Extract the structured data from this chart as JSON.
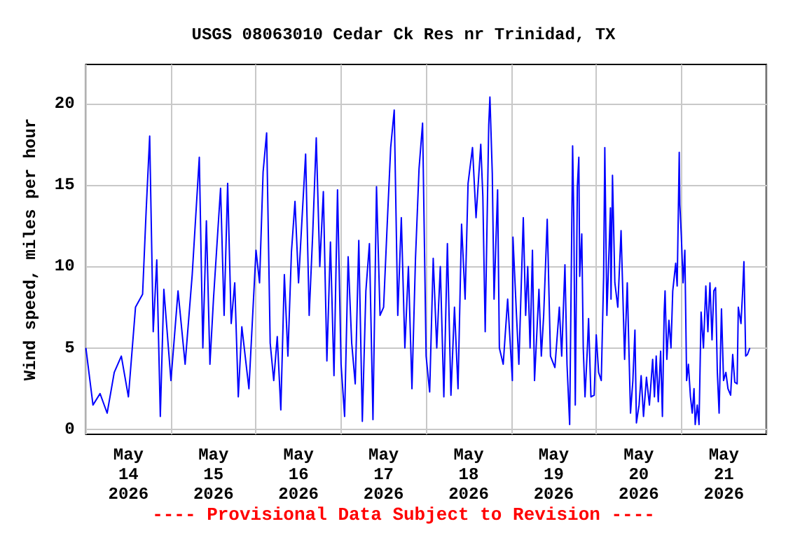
{
  "chart_data": {
    "type": "line",
    "title": "USGS 08063010 Cedar Ck Res nr Trinidad, TX",
    "ylabel": "Wind speed, miles per hour",
    "annotations": [
      "---- Provisional Data Subject to Revision ----"
    ],
    "xlim": [
      "2026-05-14",
      "2026-05-22"
    ],
    "xticks": [
      {
        "value": "2026-05-14",
        "label": null
      },
      {
        "value": "2026-05-14T12:00",
        "label": "May\n14\n2026"
      },
      {
        "value": "2026-05-15",
        "label": null
      },
      {
        "value": "2026-05-15T12:00",
        "label": "May\n15\n2026"
      },
      {
        "value": "2026-05-16",
        "label": null
      },
      {
        "value": "2026-05-16T12:00",
        "label": "May\n16\n2026"
      },
      {
        "value": "2026-05-17",
        "label": null
      },
      {
        "value": "2026-05-17T12:00",
        "label": "May\n17\n2026"
      },
      {
        "value": "2026-05-18",
        "label": null
      },
      {
        "value": "2026-05-18T12:00",
        "label": "May\n18\n2026"
      },
      {
        "value": "2026-05-19",
        "label": null
      },
      {
        "value": "2026-05-19T12:00",
        "label": "May\n19\n2026"
      },
      {
        "value": "2026-05-20",
        "label": null
      },
      {
        "value": "2026-05-20T12:00",
        "label": "May\n20\n2026"
      },
      {
        "value": "2026-05-21",
        "label": null
      },
      {
        "value": "2026-05-21T12:00",
        "label": "May\n21\n2026"
      },
      {
        "value": "2026-05-22",
        "label": null
      }
    ],
    "ylim": [
      -0.3,
      22.4
    ],
    "yticks": [
      0,
      5,
      10,
      15,
      20
    ],
    "grid": true,
    "marker": "none",
    "line_style": "solid",
    "series": [
      {
        "color": "#0000ff",
        "x": [
          "2026-05-14T00:00",
          "2026-05-14T02:00",
          "2026-05-14T04:00",
          "2026-05-14T06:00",
          "2026-05-14T08:00",
          "2026-05-14T10:00",
          "2026-05-14T12:00",
          "2026-05-14T14:00",
          "2026-05-14T16:00",
          "2026-05-14T17:00",
          "2026-05-14T18:00",
          "2026-05-14T19:00",
          "2026-05-14T20:00",
          "2026-05-14T21:00",
          "2026-05-14T22:00",
          "2026-05-15T00:00",
          "2026-05-15T02:00",
          "2026-05-15T04:00",
          "2026-05-15T06:00",
          "2026-05-15T08:00",
          "2026-05-15T09:00",
          "2026-05-15T10:00",
          "2026-05-15T11:00",
          "2026-05-15T12:00",
          "2026-05-15T14:00",
          "2026-05-15T15:00",
          "2026-05-15T16:00",
          "2026-05-15T17:00",
          "2026-05-15T18:00",
          "2026-05-15T19:00",
          "2026-05-15T20:00",
          "2026-05-15T22:00",
          "2026-05-16T00:00",
          "2026-05-16T01:00",
          "2026-05-16T02:00",
          "2026-05-16T03:00",
          "2026-05-16T04:00",
          "2026-05-16T05:00",
          "2026-05-16T06:00",
          "2026-05-16T07:00",
          "2026-05-16T08:00",
          "2026-05-16T09:00",
          "2026-05-16T10:00",
          "2026-05-16T11:00",
          "2026-05-16T12:00",
          "2026-05-16T13:00",
          "2026-05-16T14:00",
          "2026-05-16T15:00",
          "2026-05-16T16:00",
          "2026-05-16T17:00",
          "2026-05-16T18:00",
          "2026-05-16T19:00",
          "2026-05-16T20:00",
          "2026-05-16T21:00",
          "2026-05-16T22:00",
          "2026-05-16T23:00",
          "2026-05-17T00:00",
          "2026-05-17T01:00",
          "2026-05-17T02:00",
          "2026-05-17T03:00",
          "2026-05-17T04:00",
          "2026-05-17T05:00",
          "2026-05-17T06:00",
          "2026-05-17T07:00",
          "2026-05-17T08:00",
          "2026-05-17T09:00",
          "2026-05-17T10:00",
          "2026-05-17T11:00",
          "2026-05-17T12:00",
          "2026-05-17T13:00",
          "2026-05-17T14:00",
          "2026-05-17T15:00",
          "2026-05-17T16:00",
          "2026-05-17T17:00",
          "2026-05-17T18:00",
          "2026-05-17T19:00",
          "2026-05-17T20:00",
          "2026-05-17T21:00",
          "2026-05-17T22:00",
          "2026-05-17T23:00",
          "2026-05-18T00:00",
          "2026-05-18T01:00",
          "2026-05-18T02:00",
          "2026-05-18T03:00",
          "2026-05-18T04:00",
          "2026-05-18T05:00",
          "2026-05-18T06:00",
          "2026-05-18T07:00",
          "2026-05-18T08:00",
          "2026-05-18T09:00",
          "2026-05-18T10:00",
          "2026-05-18T11:00",
          "2026-05-18T11:50",
          "2026-05-18T13:05",
          "2026-05-18T14:05",
          "2026-05-18T15:25",
          "2026-05-18T16:00",
          "2026-05-18T16:40",
          "2026-05-18T17:40",
          "2026-05-18T18:00",
          "2026-05-18T18:40",
          "2026-05-18T19:10",
          "2026-05-18T20:10",
          "2026-05-18T20:40",
          "2026-05-18T21:45",
          "2026-05-18T23:00",
          "2026-05-19T00:20",
          "2026-05-19T00:30",
          "2026-05-19T01:30",
          "2026-05-19T02:10",
          "2026-05-19T03:25",
          "2026-05-19T04:05",
          "2026-05-19T04:40",
          "2026-05-19T05:20",
          "2026-05-19T06:00",
          "2026-05-19T06:35",
          "2026-05-19T07:50",
          "2026-05-19T08:30",
          "2026-05-19T09:10",
          "2026-05-19T10:10",
          "2026-05-19T11:05",
          "2026-05-19T12:20",
          "2026-05-19T13:35",
          "2026-05-19T14:15",
          "2026-05-19T15:10",
          "2026-05-19T15:45",
          "2026-05-19T16:30",
          "2026-05-19T17:20",
          "2026-05-19T17:40",
          "2026-05-19T18:05",
          "2026-05-19T18:40",
          "2026-05-19T19:05",
          "2026-05-19T19:20",
          "2026-05-19T19:55",
          "2026-05-19T20:20",
          "2026-05-19T20:50",
          "2026-05-19T21:30",
          "2026-05-19T21:50",
          "2026-05-19T22:30",
          "2026-05-19T23:25",
          "2026-05-20T00:00",
          "2026-05-20T00:40",
          "2026-05-20T01:25",
          "2026-05-20T02:05",
          "2026-05-20T02:25",
          "2026-05-20T03:00",
          "2026-05-20T04:00",
          "2026-05-20T04:10",
          "2026-05-20T04:35",
          "2026-05-20T05:15",
          "2026-05-20T06:05",
          "2026-05-20T07:00",
          "2026-05-20T07:25",
          "2026-05-20T08:00",
          "2026-05-20T08:45",
          "2026-05-20T09:40",
          "2026-05-20T10:20",
          "2026-05-20T10:55",
          "2026-05-20T11:20",
          "2026-05-20T12:05",
          "2026-05-20T12:40",
          "2026-05-20T13:20",
          "2026-05-20T14:10",
          "2026-05-20T15:00",
          "2026-05-20T15:55",
          "2026-05-20T16:25",
          "2026-05-20T16:55",
          "2026-05-20T17:30",
          "2026-05-20T18:10",
          "2026-05-20T18:40",
          "2026-05-20T19:10",
          "2026-05-20T19:25",
          "2026-05-20T19:55",
          "2026-05-20T20:30",
          "2026-05-20T21:05",
          "2026-05-20T21:35",
          "2026-05-20T22:25",
          "2026-05-20T22:50",
          "2026-05-20T23:25",
          "2026-05-20T23:35",
          "2026-05-21T00:00",
          "2026-05-21T00:30",
          "2026-05-21T01:00",
          "2026-05-21T01:30",
          "2026-05-21T02:00",
          "2026-05-21T02:35",
          "2026-05-21T03:05",
          "2026-05-21T03:35",
          "2026-05-21T03:55",
          "2026-05-21T04:30",
          "2026-05-21T05:00",
          "2026-05-21T05:35",
          "2026-05-21T06:15",
          "2026-05-21T06:55",
          "2026-05-21T07:30",
          "2026-05-21T08:05",
          "2026-05-21T08:40",
          "2026-05-21T09:10",
          "2026-05-21T09:40",
          "2026-05-21T10:10",
          "2026-05-21T10:40",
          "2026-05-21T11:20",
          "2026-05-21T11:55",
          "2026-05-21T12:35",
          "2026-05-21T13:10",
          "2026-05-21T13:55",
          "2026-05-21T14:30",
          "2026-05-21T15:05",
          "2026-05-21T15:45",
          "2026-05-21T16:05",
          "2026-05-21T16:50",
          "2026-05-21T17:20",
          "2026-05-21T17:40",
          "2026-05-21T18:10",
          "2026-05-21T18:40",
          "2026-05-21T19:20"
        ],
        "values": [
          5.0,
          1.5,
          2.2,
          1.0,
          3.5,
          4.5,
          2.0,
          7.5,
          8.3,
          13.4,
          18.0,
          6.0,
          10.4,
          0.8,
          8.6,
          3.0,
          8.5,
          4.0,
          9.5,
          16.7,
          5.0,
          12.8,
          4.0,
          8.0,
          14.8,
          7.0,
          15.1,
          6.5,
          9.0,
          2.0,
          6.3,
          2.5,
          11.0,
          9.0,
          15.8,
          18.2,
          5.3,
          3.0,
          5.7,
          1.2,
          9.5,
          4.5,
          10.9,
          14.0,
          9.0,
          13.0,
          16.9,
          7.0,
          12.0,
          17.9,
          10.0,
          14.6,
          4.2,
          11.5,
          3.3,
          14.7,
          4.0,
          0.8,
          10.6,
          5.3,
          2.8,
          11.6,
          0.5,
          8.5,
          11.4,
          0.6,
          14.9,
          7.0,
          7.5,
          12.5,
          17.3,
          19.6,
          7.0,
          13.0,
          5.0,
          10.0,
          2.5,
          10.5,
          16.0,
          18.8,
          4.5,
          2.3,
          10.5,
          5.0,
          10.0,
          2.0,
          11.4,
          2.1,
          7.5,
          2.5,
          12.6,
          8.0,
          15.1,
          17.3,
          13.0,
          17.5,
          14.3,
          6.0,
          18.7,
          20.4,
          15.7,
          8.0,
          14.7,
          5.0,
          4.0,
          8.0,
          3.0,
          11.8,
          7.0,
          4.0,
          13.0,
          7.0,
          10.0,
          5.0,
          11.0,
          3.0,
          8.6,
          4.5,
          7.0,
          12.9,
          4.5,
          3.8,
          7.5,
          4.5,
          10.1,
          4.0,
          0.3,
          17.4,
          13.0,
          1.5,
          14.9,
          16.7,
          9.4,
          12.0,
          5.0,
          2.0,
          5.0,
          6.8,
          2.0,
          2.1,
          5.8,
          3.5,
          3.0,
          9.4,
          17.3,
          7.0,
          13.6,
          8.0,
          15.6,
          9.0,
          7.5,
          12.2,
          9.0,
          4.3,
          9.0,
          1.0,
          3.0,
          6.1,
          0.4,
          1.5,
          3.3,
          0.8,
          3.2,
          1.5,
          4.3,
          2.0,
          4.5,
          1.7,
          4.8,
          0.8,
          7.2,
          8.5,
          4.3,
          6.7,
          5.0,
          8.5,
          10.2,
          8.8,
          17.0,
          13.8,
          11.9,
          9.0,
          11.0,
          3.0,
          4.0,
          2.0,
          1.0,
          2.5,
          0.3,
          1.5,
          0.3,
          7.2,
          5.0,
          8.8,
          6.0,
          9.0,
          5.5,
          8.5,
          8.7,
          3.5,
          1.0,
          7.4,
          3.0,
          3.5,
          2.5,
          2.1,
          4.6,
          2.9,
          2.8,
          7.5,
          6.5,
          8.6,
          10.3,
          4.5,
          4.6,
          5.0
        ]
      }
    ]
  }
}
